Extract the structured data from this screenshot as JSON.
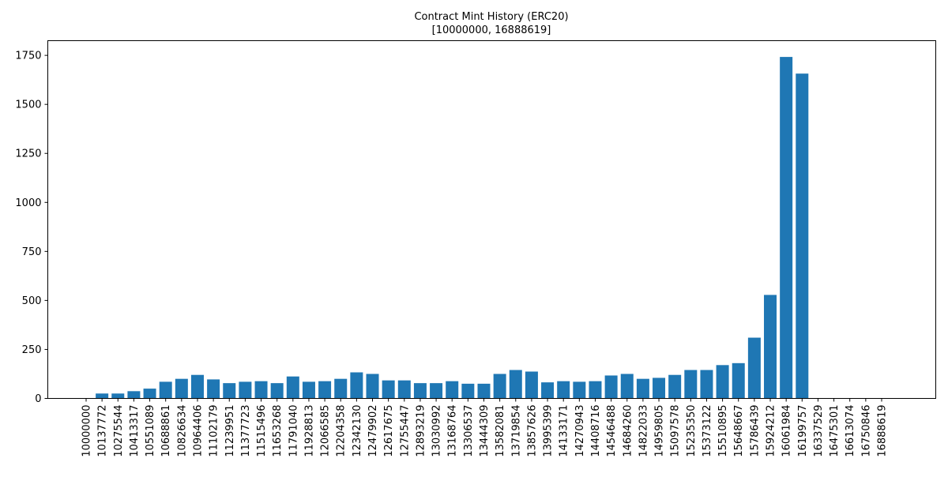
{
  "chart_data": {
    "type": "bar",
    "title": "Contract Mint History (ERC20)",
    "subtitle": "[10000000, 16888619]",
    "xlabel": "",
    "ylabel": "",
    "ylim": [
      0,
      1825
    ],
    "yticks": [
      0,
      250,
      500,
      750,
      1000,
      1250,
      1500,
      1750
    ],
    "grid": false,
    "bar_color": "#1f77b4",
    "categories": [
      "10000000",
      "10137772",
      "10275544",
      "10413317",
      "10551089",
      "10688861",
      "10826634",
      "10964406",
      "11102179",
      "11239951",
      "11377723",
      "11515496",
      "11653268",
      "11791040",
      "11928813",
      "12066585",
      "12204358",
      "12342130",
      "12479902",
      "12617675",
      "12755447",
      "12893219",
      "13030992",
      "13168764",
      "13306537",
      "13444309",
      "13582081",
      "13719854",
      "13857626",
      "13995399",
      "14133171",
      "14270943",
      "14408716",
      "14546488",
      "14684260",
      "14822033",
      "14959805",
      "15097578",
      "15235350",
      "15373122",
      "15510895",
      "15648667",
      "15786439",
      "15924212",
      "16061984",
      "16199757",
      "16337529",
      "16475301",
      "16613074",
      "16750846",
      "16888619"
    ],
    "values": [
      0,
      25,
      25,
      37,
      50,
      85,
      100,
      120,
      97,
      78,
      85,
      88,
      78,
      112,
      85,
      88,
      100,
      133,
      125,
      92,
      92,
      78,
      78,
      88,
      75,
      75,
      125,
      145,
      137,
      82,
      88,
      85,
      88,
      117,
      125,
      100,
      105,
      120,
      145,
      145,
      170,
      180,
      310,
      528,
      1742,
      1657,
      0,
      0,
      0,
      0,
      0
    ]
  }
}
